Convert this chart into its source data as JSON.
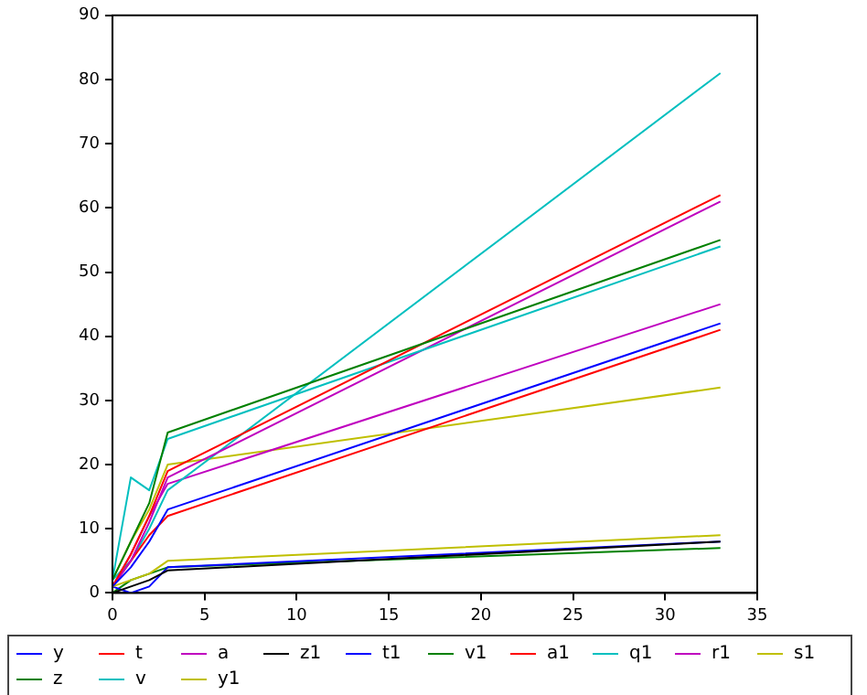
{
  "chart_data": {
    "type": "line",
    "x": [
      0,
      1,
      2,
      3,
      33
    ],
    "xlim": [
      0,
      35
    ],
    "xticks": [
      0,
      5,
      10,
      15,
      20,
      25,
      30,
      35
    ],
    "ylim": [
      0,
      90
    ],
    "yticks": [
      0,
      10,
      20,
      30,
      40,
      50,
      60,
      70,
      80,
      90
    ],
    "grid": false,
    "legend": "bottom",
    "marker": "none",
    "line_style": "solid",
    "series": [
      {
        "name": "y",
        "color": "#0000ff",
        "values": [
          1,
          4,
          8,
          13,
          42
        ]
      },
      {
        "name": "z",
        "color": "#008000",
        "values": [
          2,
          8,
          14,
          25,
          55
        ]
      },
      {
        "name": "t",
        "color": "#ff0000",
        "values": [
          1,
          6,
          12,
          19,
          62
        ]
      },
      {
        "name": "v",
        "color": "#00bfbf",
        "values": [
          2,
          18,
          16,
          24,
          54
        ]
      },
      {
        "name": "a",
        "color": "#bf00bf",
        "values": [
          1,
          5,
          11,
          18,
          61
        ]
      },
      {
        "name": "y1",
        "color": "#bfbf00",
        "values": [
          1,
          2,
          3,
          5,
          9
        ]
      },
      {
        "name": "z1",
        "color": "#000000",
        "values": [
          0,
          1,
          2,
          3.5,
          8
        ]
      },
      {
        "name": "t1",
        "color": "#0000ff",
        "values": [
          1,
          0,
          1,
          4,
          8
        ]
      },
      {
        "name": "v1",
        "color": "#008000",
        "values": [
          0,
          2,
          3,
          4,
          7
        ]
      },
      {
        "name": "a1",
        "color": "#ff0000",
        "values": [
          1,
          5,
          9,
          12,
          41
        ]
      },
      {
        "name": "q1",
        "color": "#00bfbf",
        "values": [
          2,
          5,
          10,
          16,
          81
        ]
      },
      {
        "name": "r1",
        "color": "#bf00bf",
        "values": [
          1,
          6,
          12,
          17,
          45
        ]
      },
      {
        "name": "s1",
        "color": "#bfbf00",
        "values": [
          2,
          8,
          13,
          20,
          32
        ]
      }
    ]
  }
}
